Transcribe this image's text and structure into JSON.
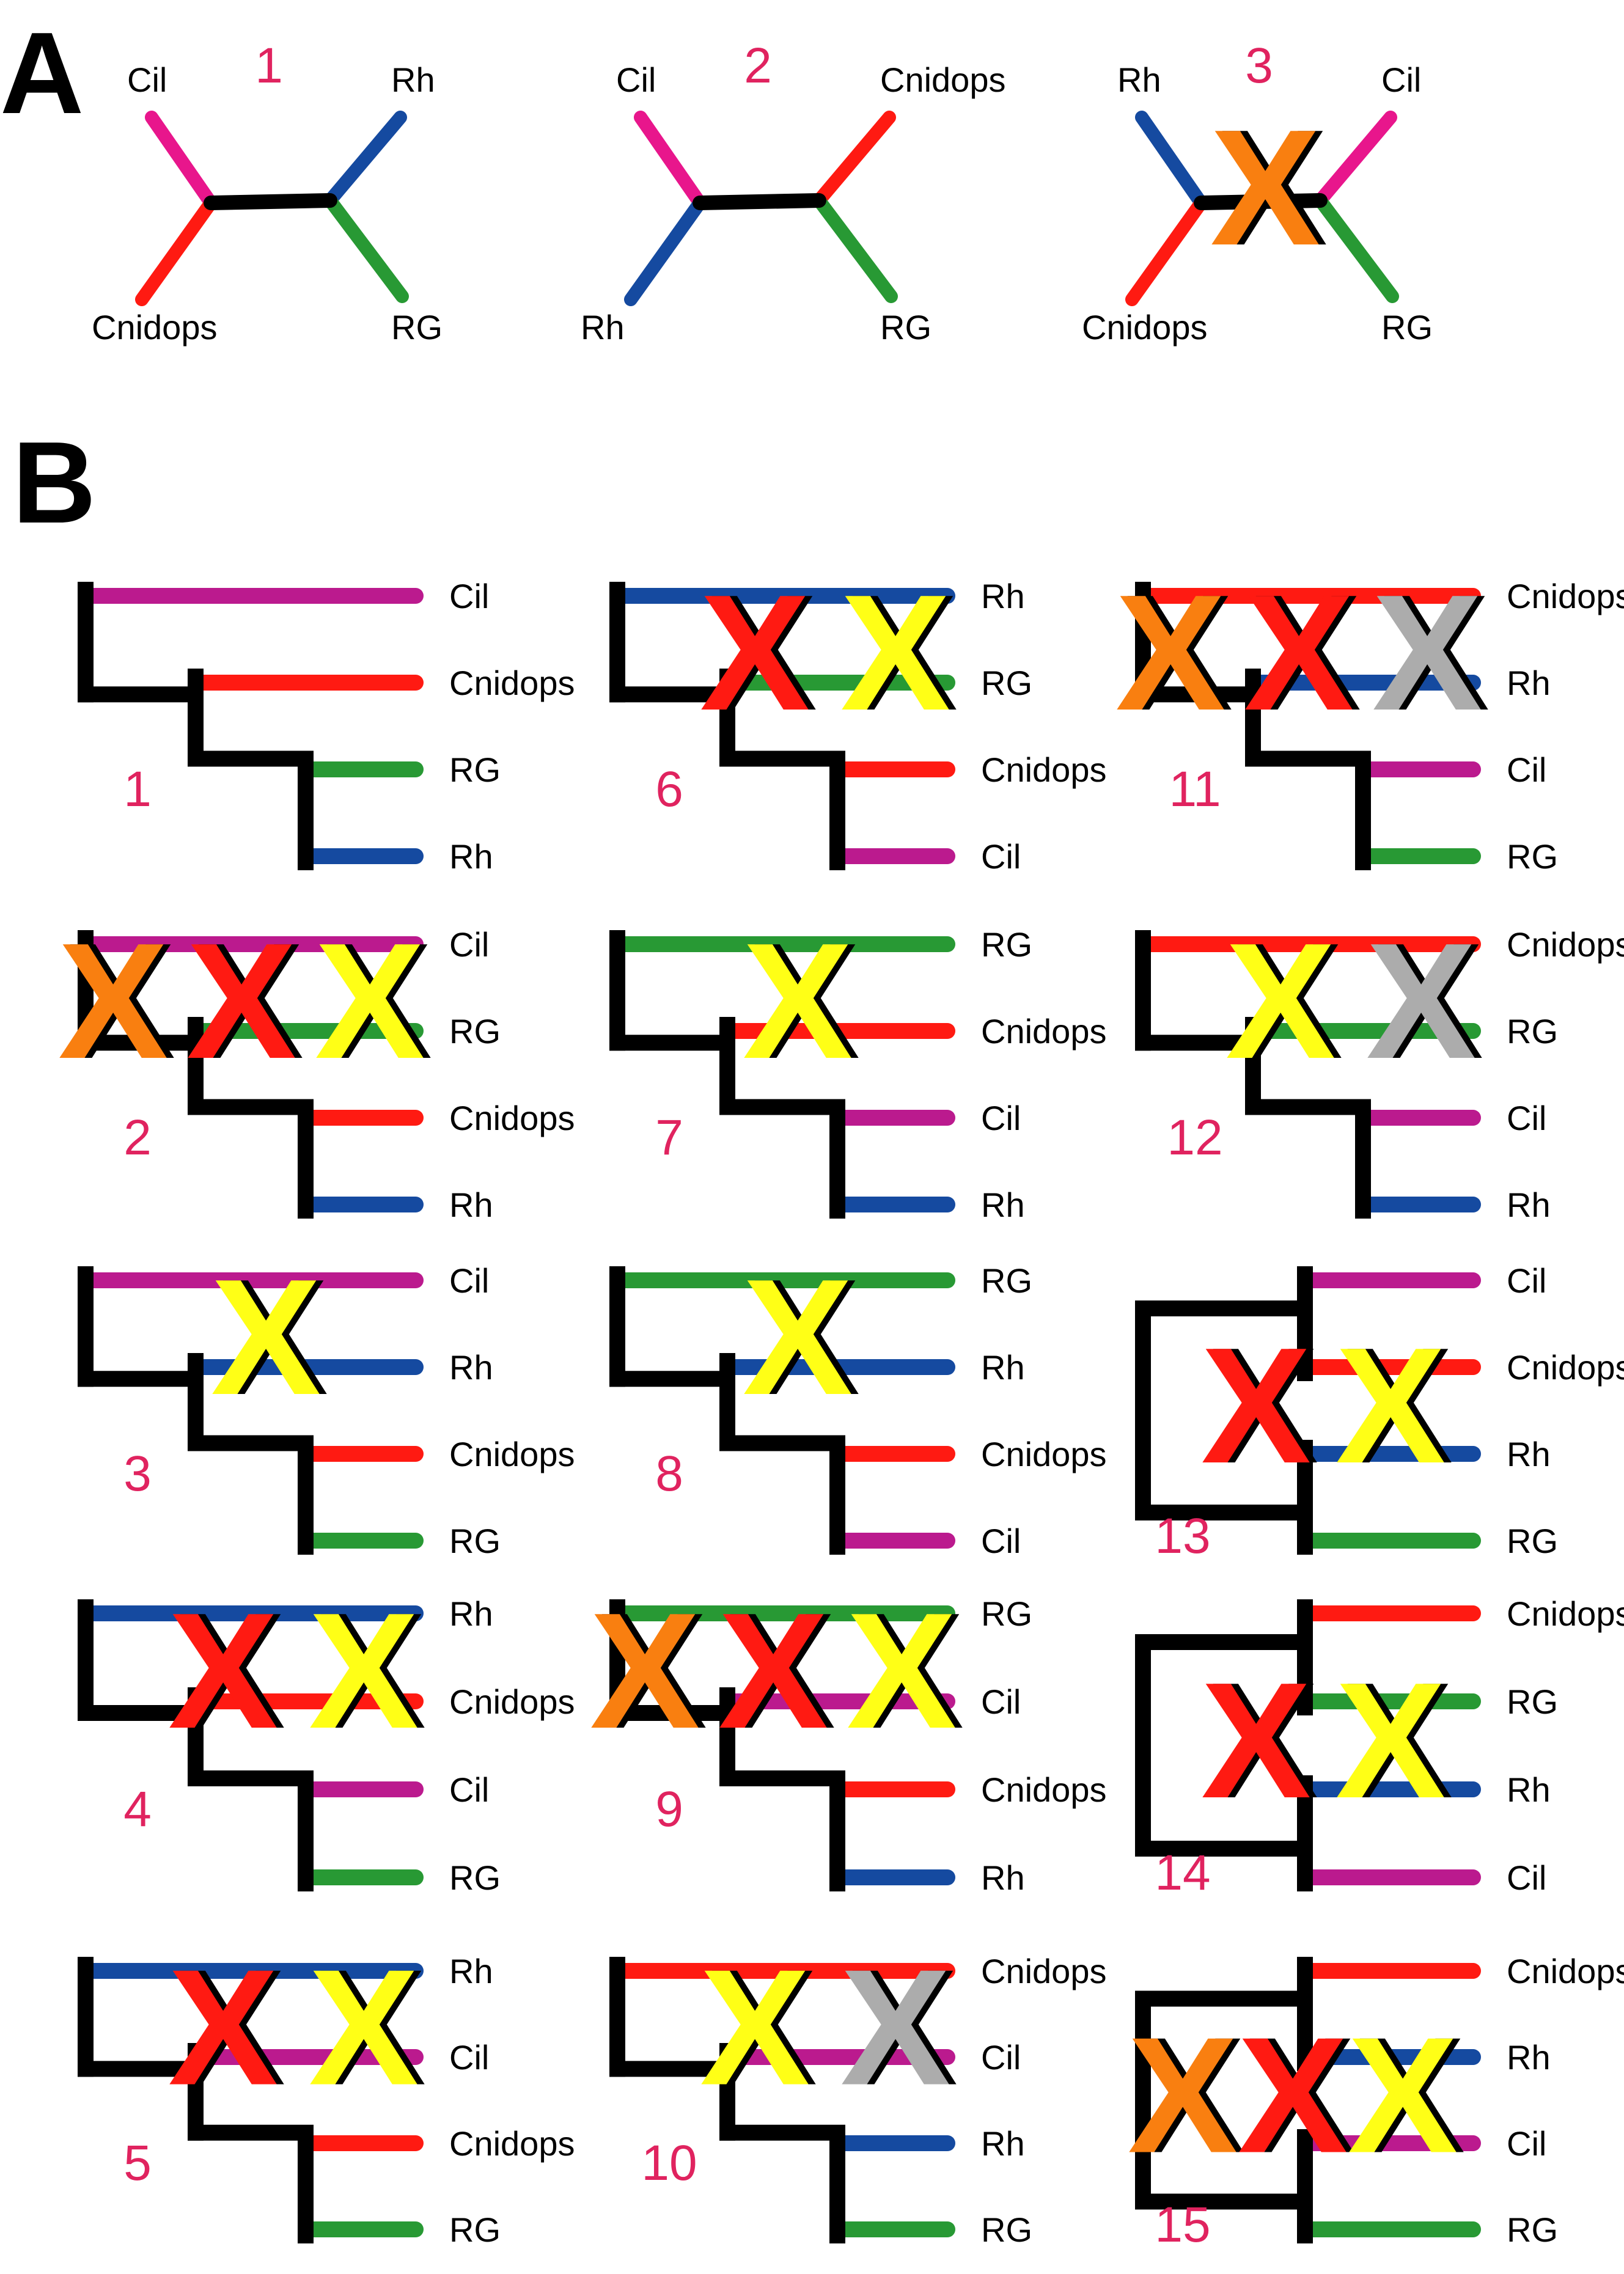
{
  "panel_labels": [
    "A",
    "B"
  ],
  "colors": {
    "Cil": "#e8168c",
    "CilB": "#bb1a8e",
    "Cnidops": "#ff1a12",
    "Rh": "#154aa0",
    "RG": "#289934",
    "tree": "#000000",
    "number": "#e0235f",
    "x_red": "#ff1a12",
    "x_yellow": "#ffff16",
    "x_orange": "#f97f10",
    "x_gray": "#acacac"
  },
  "unrooted_trees": [
    {
      "number": "1",
      "left_top": "Cil",
      "left_bottom": "Cnidops",
      "right_top": "Rh",
      "right_bottom": "RG",
      "x_marks": []
    },
    {
      "number": "2",
      "left_top": "Cil",
      "left_bottom": "Rh",
      "right_top": "Cnidops",
      "right_bottom": "RG",
      "x_marks": []
    },
    {
      "number": "3",
      "left_top": "Rh",
      "left_bottom": "Cnidops",
      "right_top": "Cil",
      "right_bottom": "RG",
      "x_marks": [
        "orange"
      ]
    }
  ],
  "rooted_trees": [
    {
      "number": "1",
      "type": "ladder",
      "leaves": [
        "Cil",
        "Cnidops",
        "RG",
        "Rh"
      ],
      "x_marks": []
    },
    {
      "number": "2",
      "type": "ladder",
      "leaves": [
        "Cil",
        "RG",
        "Cnidops",
        "Rh"
      ],
      "x_marks": [
        "orange",
        "red",
        "yellow"
      ]
    },
    {
      "number": "3",
      "type": "ladder",
      "leaves": [
        "Cil",
        "Rh",
        "Cnidops",
        "RG"
      ],
      "x_marks": [
        "yellow"
      ]
    },
    {
      "number": "4",
      "type": "ladder",
      "leaves": [
        "Rh",
        "Cnidops",
        "Cil",
        "RG"
      ],
      "x_marks": [
        "red",
        "yellow"
      ]
    },
    {
      "number": "5",
      "type": "ladder",
      "leaves": [
        "Rh",
        "Cil",
        "Cnidops",
        "RG"
      ],
      "x_marks": [
        "red",
        "yellow"
      ]
    },
    {
      "number": "6",
      "type": "ladder",
      "leaves": [
        "Rh",
        "RG",
        "Cnidops",
        "Cil"
      ],
      "x_marks": [
        "red",
        "yellow"
      ]
    },
    {
      "number": "7",
      "type": "ladder",
      "leaves": [
        "RG",
        "Cnidops",
        "Cil",
        "Rh"
      ],
      "x_marks": [
        "yellow"
      ]
    },
    {
      "number": "8",
      "type": "ladder",
      "leaves": [
        "RG",
        "Rh",
        "Cnidops",
        "Cil"
      ],
      "x_marks": [
        "yellow"
      ]
    },
    {
      "number": "9",
      "type": "ladder",
      "leaves": [
        "RG",
        "Cil",
        "Cnidops",
        "Rh"
      ],
      "x_marks": [
        "orange",
        "red",
        "yellow"
      ]
    },
    {
      "number": "10",
      "type": "ladder",
      "leaves": [
        "Cnidops",
        "Cil",
        "Rh",
        "RG"
      ],
      "x_marks": [
        "yellow",
        "gray"
      ]
    },
    {
      "number": "11",
      "type": "ladder",
      "leaves": [
        "Cnidops",
        "Rh",
        "Cil",
        "RG"
      ],
      "x_marks": [
        "orange",
        "red",
        "gray"
      ]
    },
    {
      "number": "12",
      "type": "ladder",
      "leaves": [
        "Cnidops",
        "RG",
        "Cil",
        "Rh"
      ],
      "x_marks": [
        "yellow",
        "gray"
      ]
    },
    {
      "number": "13",
      "type": "balanced",
      "leaves": [
        "Cil",
        "Cnidops",
        "Rh",
        "RG"
      ],
      "x_marks": [
        "red",
        "yellow"
      ]
    },
    {
      "number": "14",
      "type": "balanced",
      "leaves": [
        "Cnidops",
        "RG",
        "Rh",
        "Cil"
      ],
      "x_marks": [
        "red",
        "yellow"
      ]
    },
    {
      "number": "15",
      "type": "balanced",
      "leaves": [
        "Cnidops",
        "Rh",
        "Cil",
        "RG"
      ],
      "x_marks": [
        "orange",
        "red",
        "yellow"
      ]
    }
  ]
}
